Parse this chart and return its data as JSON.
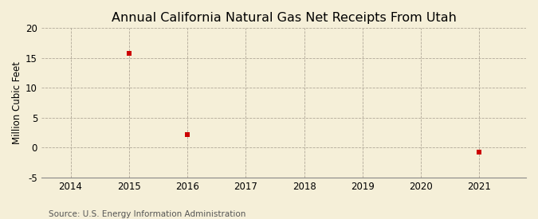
{
  "title": "Annual California Natural Gas Net Receipts From Utah",
  "ylabel": "Million Cubic Feet",
  "source": "Source: U.S. Energy Information Administration",
  "background_color": "#f5efd8",
  "plot_bg_color": "#f5efd8",
  "data_points": {
    "2015": 15.8,
    "2016": 2.2,
    "2021": -0.8
  },
  "x_ticks": [
    2014,
    2015,
    2016,
    2017,
    2018,
    2019,
    2020,
    2021
  ],
  "xlim": [
    2013.5,
    2021.8
  ],
  "ylim": [
    -5,
    20
  ],
  "y_ticks": [
    -5,
    0,
    5,
    10,
    15,
    20
  ],
  "marker_color": "#cc0000",
  "marker_size": 4,
  "grid_color": "#b0a898",
  "title_fontsize": 11.5,
  "ylabel_fontsize": 8.5,
  "tick_fontsize": 8.5,
  "source_fontsize": 7.5
}
